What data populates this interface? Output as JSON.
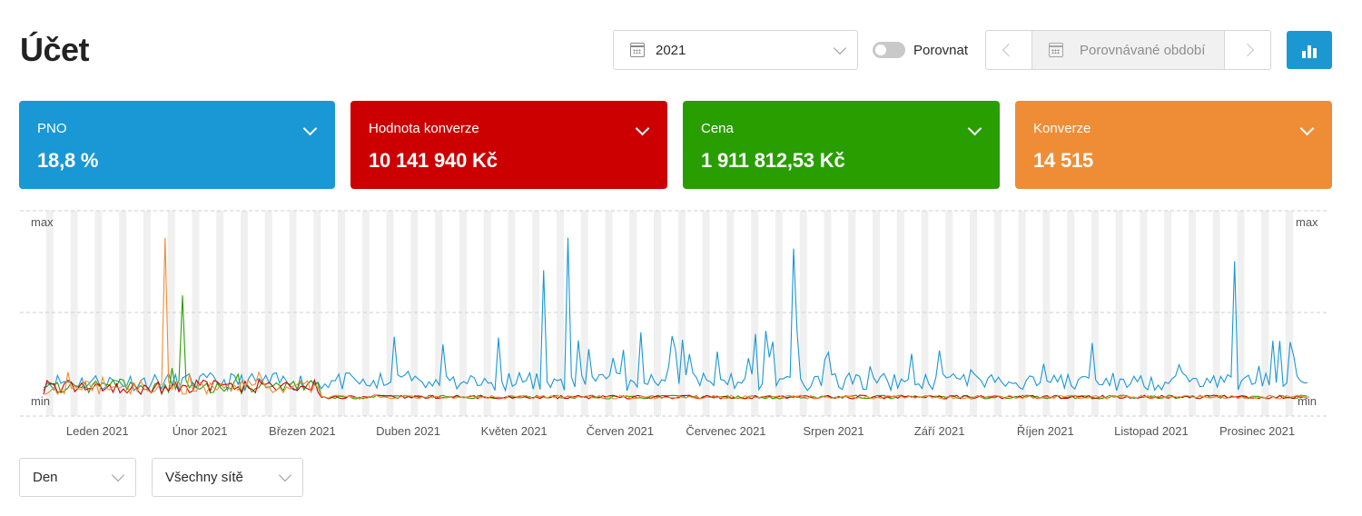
{
  "header": {
    "title": "Účet",
    "year": "2021",
    "compare_label": "Porovnat",
    "compare_placeholder": "Porovnávané období"
  },
  "cards": [
    {
      "label": "PNO",
      "value": "18,8 %",
      "color": "#1a97d5"
    },
    {
      "label": "Hodnota konverze",
      "value": "10 141 940 Kč",
      "color": "#cc0000"
    },
    {
      "label": "Cena",
      "value": "1 911 812,53 Kč",
      "color": "#299e00"
    },
    {
      "label": "Konverze",
      "value": "14 515",
      "color": "#ef8d36"
    }
  ],
  "chart_data": {
    "type": "line",
    "axis_left": {
      "top": "max",
      "bottom": "min"
    },
    "axis_right": {
      "top": "max",
      "bottom": "min"
    },
    "x_labels": [
      "Leden 2021",
      "Únor 2021",
      "Březen 2021",
      "Duben 2021",
      "Květen 2021",
      "Červen 2021",
      "Červenec 2021",
      "Srpen 2021",
      "Září 2021",
      "Říjen 2021",
      "Listopad 2021",
      "Prosinec 2021"
    ],
    "series_colors": {
      "pno": "#1a97d5",
      "hodnota_konverze": "#cc0000",
      "cena": "#299e00",
      "konverze": "#ef8d36"
    },
    "approx_peaks": {
      "pno": [
        {
          "date": "2021-06-01",
          "level": 0.9
        },
        {
          "date": "2021-05-25",
          "level": 0.72
        },
        {
          "date": "2021-08-05",
          "level": 0.84
        },
        {
          "date": "2021-12-10",
          "level": 0.77
        }
      ],
      "konverze": [
        {
          "date": "2021-02-05",
          "level": 0.9
        }
      ],
      "cena": [
        {
          "date": "2021-02-10",
          "level": 0.58
        }
      ]
    }
  },
  "filters": {
    "granularity": "Den",
    "network": "Všechny sítě"
  }
}
